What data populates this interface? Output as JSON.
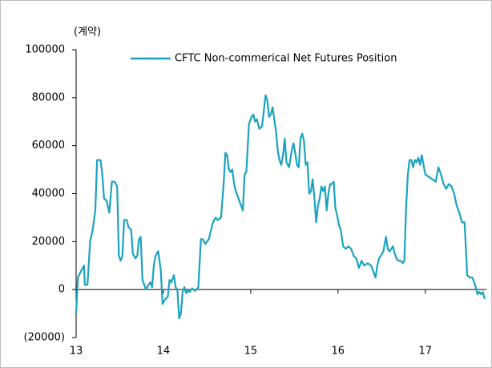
{
  "chart_data": {
    "type": "line",
    "unit_label": "(계약)",
    "xlim": [
      13,
      17.7
    ],
    "xticks": [
      13,
      14,
      15,
      16,
      17
    ],
    "ylim": [
      -20000,
      100000
    ],
    "yticks": [
      {
        "value": -20000,
        "label": "(20000)"
      },
      0,
      20000,
      40000,
      60000,
      80000,
      100000
    ],
    "legend": "top",
    "series": [
      {
        "name": "CFTC Non-commerical Net Futures Position",
        "color": "#1aa3bf",
        "x": [
          13.0,
          13.02,
          13.06,
          13.09,
          13.1,
          13.13,
          13.16,
          13.19,
          13.22,
          13.24,
          13.28,
          13.3,
          13.32,
          13.35,
          13.38,
          13.41,
          13.44,
          13.47,
          13.49,
          13.51,
          13.53,
          13.55,
          13.58,
          13.6,
          13.63,
          13.65,
          13.68,
          13.7,
          13.72,
          13.74,
          13.76,
          13.78,
          13.8,
          13.83,
          13.85,
          13.87,
          13.89,
          13.91,
          13.94,
          13.97,
          13.99,
          14.02,
          14.05,
          14.07,
          14.09,
          14.1,
          14.12,
          14.14,
          14.16,
          14.18,
          14.2,
          14.22,
          14.24,
          14.26,
          14.28,
          14.3,
          14.33,
          14.36,
          14.38,
          14.4,
          14.43,
          14.45,
          14.48,
          14.5,
          14.52,
          14.54,
          14.56,
          14.58,
          14.6,
          14.62,
          14.66,
          14.69,
          14.71,
          14.73,
          14.75,
          14.77,
          14.79,
          14.81,
          14.83,
          14.85,
          14.87,
          14.89,
          14.91,
          14.93,
          14.95,
          14.98,
          15.01,
          15.03,
          15.05,
          15.07,
          15.1,
          15.13,
          15.17,
          15.19,
          15.21,
          15.23,
          15.25,
          15.27,
          15.29,
          15.31,
          15.33,
          15.35,
          15.37,
          15.39,
          15.41,
          15.44,
          15.47,
          15.49,
          15.51,
          15.53,
          15.55,
          15.57,
          15.59,
          15.61,
          15.63,
          15.65,
          15.67,
          15.69,
          15.71,
          15.73,
          15.75,
          15.77,
          15.79,
          15.81,
          15.83,
          15.85,
          15.87,
          15.89,
          15.91,
          15.93,
          15.95,
          15.97,
          15.99,
          16.01,
          16.03,
          16.06,
          16.09,
          16.12,
          16.15,
          16.18,
          16.21,
          16.24,
          16.27,
          16.3,
          16.34,
          16.38,
          16.43,
          16.45,
          16.47,
          16.49,
          16.52,
          16.55,
          16.57,
          16.59,
          16.61,
          16.63,
          16.65,
          16.67,
          16.69,
          16.72,
          16.74,
          16.76,
          16.78,
          16.8,
          16.82,
          16.84,
          16.86,
          16.88,
          16.9,
          16.92,
          16.94,
          16.96,
          16.98,
          17.0,
          17.04,
          17.08,
          17.12,
          17.15,
          17.18,
          17.21,
          17.24,
          17.27,
          17.3,
          17.33,
          17.36,
          17.39,
          17.42,
          17.45,
          17.48,
          17.51,
          17.54,
          17.57,
          17.6,
          17.62,
          17.64,
          17.66,
          17.68
        ],
        "values": [
          -10000,
          5000,
          8000,
          10000,
          2000,
          2000,
          20000,
          25000,
          33000,
          54000,
          54000,
          48000,
          38000,
          37000,
          32000,
          45000,
          45000,
          43000,
          14000,
          12000,
          14000,
          29000,
          29000,
          26000,
          25000,
          15000,
          13000,
          14000,
          21000,
          22000,
          4000,
          2000,
          0,
          2000,
          3000,
          1000,
          10000,
          14000,
          16000,
          8000,
          -6000,
          -4000,
          -3000,
          4000,
          3000,
          4000,
          6000,
          1000,
          0,
          -12000,
          -10000,
          -1000,
          1000,
          -1500,
          -500,
          -1000,
          500,
          -500,
          0,
          1000,
          21000,
          21000,
          19000,
          20000,
          21000,
          24000,
          27000,
          29000,
          30000,
          29000,
          30000,
          44000,
          57000,
          56000,
          50000,
          49000,
          50000,
          44000,
          41000,
          39000,
          37000,
          35000,
          33000,
          48000,
          49000,
          69000,
          72000,
          73000,
          70000,
          71000,
          67000,
          68000,
          81000,
          79000,
          72000,
          73000,
          76000,
          71000,
          66000,
          58000,
          54000,
          52000,
          56000,
          63000,
          53000,
          51000,
          58000,
          61000,
          57000,
          52000,
          51000,
          63000,
          65000,
          62000,
          52000,
          53000,
          40000,
          41000,
          46000,
          38000,
          28000,
          35000,
          38000,
          43000,
          41000,
          43000,
          33000,
          40000,
          44000,
          44000,
          45000,
          34000,
          31000,
          27000,
          25000,
          18000,
          17000,
          18000,
          17000,
          14000,
          13000,
          9000,
          12000,
          10000,
          11000,
          10000,
          5000,
          10000,
          13000,
          14000,
          16000,
          22000,
          17000,
          16000,
          17000,
          18000,
          15000,
          13000,
          12000,
          12000,
          11000,
          12000,
          34000,
          48000,
          54000,
          54000,
          51000,
          54000,
          53000,
          55000,
          52000,
          56000,
          52000,
          48000,
          47000,
          46000,
          45000,
          51000,
          48000,
          44000,
          42000,
          44000,
          43000,
          40000,
          35000,
          32000,
          28000,
          28000,
          6000,
          5000,
          5000,
          2000,
          -2000,
          -1000,
          -2000,
          -1000,
          -4000
        ]
      }
    ]
  }
}
